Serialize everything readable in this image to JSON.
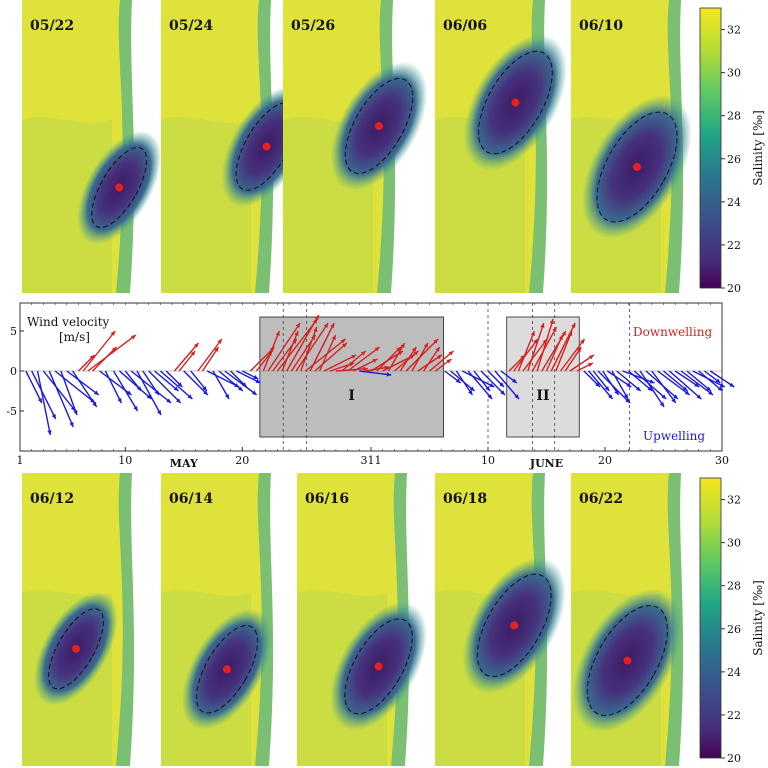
{
  "maps_top": [
    "05/22",
    "05/24",
    "05/26",
    "06/06",
    "06/10"
  ],
  "maps_bottom": [
    "06/12",
    "06/14",
    "06/16",
    "06/18",
    "06/22"
  ],
  "colorbar": {
    "label": "Salinity [‰]",
    "ticks": [
      "32",
      "30",
      "28",
      "26",
      "24",
      "22",
      "20"
    ],
    "range": [
      20,
      33
    ]
  },
  "colors": {
    "high": "#e8e43a",
    "mid": "#3aa692",
    "low": "#3d1a63",
    "downwelling": "#d62020",
    "upwelling": "#1a1adc",
    "event_I": "#bdbdbd",
    "event_II": "#dcdcdc"
  },
  "chart_data": {
    "type": "quiver",
    "title": "",
    "ylabel": "Wind velocity",
    "yunits": "[m/s]",
    "ylim": [
      -10,
      8.5
    ],
    "xlim": [
      1,
      61
    ],
    "yticks": [
      5,
      0,
      -5
    ],
    "xticks": [
      {
        "day": 1,
        "label": "1"
      },
      {
        "day": 10,
        "label": "10"
      },
      {
        "day": 20,
        "label": "20"
      },
      {
        "day": 31,
        "label": "311"
      },
      {
        "day": 41,
        "label": "10"
      },
      {
        "day": 51,
        "label": "20"
      },
      {
        "day": 61,
        "label": "30"
      }
    ],
    "month_labels": [
      {
        "day": 15,
        "label": "MAY"
      },
      {
        "day": 46,
        "label": "JUNE"
      }
    ],
    "legend": {
      "downwelling": "Downwelling",
      "upwelling": "Upwelling"
    },
    "events": [
      {
        "label": "I",
        "start": 21.5,
        "end": 37.2,
        "shade": "dark"
      },
      {
        "label": "II",
        "start": 42.6,
        "end": 48.8,
        "shade": "light"
      }
    ],
    "dashed_days": [
      23.5,
      25.5,
      41,
      44.8,
      46.7,
      53.1
    ],
    "vectors": [
      {
        "day": 1.5,
        "u": 1.0,
        "v": -4.0
      },
      {
        "day": 2.0,
        "u": 1.5,
        "v": -6.0
      },
      {
        "day": 2.5,
        "u": 0.8,
        "v": -8.0
      },
      {
        "day": 3.0,
        "u": 2.0,
        "v": -5.0
      },
      {
        "day": 3.5,
        "u": 1.5,
        "v": -7.0
      },
      {
        "day": 4.0,
        "u": 2.5,
        "v": -4.0
      },
      {
        "day": 4.5,
        "u": 1.0,
        "v": -5.5
      },
      {
        "day": 5.0,
        "u": 2.0,
        "v": -3.0
      },
      {
        "day": 5.5,
        "u": 1.5,
        "v": -4.5
      },
      {
        "day": 6.0,
        "u": 1.0,
        "v": 2.0
      },
      {
        "day": 6.4,
        "u": 2.0,
        "v": 5.0
      },
      {
        "day": 6.8,
        "u": 3.0,
        "v": 4.5
      },
      {
        "day": 7.2,
        "u": 1.5,
        "v": 3.0
      },
      {
        "day": 7.8,
        "u": 2.0,
        "v": -3.0
      },
      {
        "day": 8.3,
        "u": 1.0,
        "v": -4.0
      },
      {
        "day": 9.0,
        "u": 1.5,
        "v": -5.0
      },
      {
        "day": 9.5,
        "u": 2.0,
        "v": -3.5
      },
      {
        "day": 10.0,
        "u": 1.0,
        "v": -2.5
      },
      {
        "day": 10.5,
        "u": 2.5,
        "v": -4.0
      },
      {
        "day": 11.0,
        "u": 1.5,
        "v": -5.5
      },
      {
        "day": 11.5,
        "u": 1.0,
        "v": -3.0
      },
      {
        "day": 12.0,
        "u": 2.0,
        "v": -4.0
      },
      {
        "day": 12.5,
        "u": 1.5,
        "v": -2.5
      },
      {
        "day": 13.0,
        "u": 2.0,
        "v": -3.5
      },
      {
        "day": 13.5,
        "u": 1.0,
        "v": -2.0
      },
      {
        "day": 14.2,
        "u": 1.5,
        "v": 3.5
      },
      {
        "day": 14.6,
        "u": 1.0,
        "v": 2.5
      },
      {
        "day": 15.0,
        "u": 1.5,
        "v": -3.0
      },
      {
        "day": 15.6,
        "u": 1.0,
        "v": -2.5
      },
      {
        "day": 16.2,
        "u": 1.5,
        "v": 4.0
      },
      {
        "day": 16.6,
        "u": 1.0,
        "v": 3.0
      },
      {
        "day": 17.0,
        "u": 2.0,
        "v": -2.0
      },
      {
        "day": 17.5,
        "u": 1.0,
        "v": -3.5
      },
      {
        "day": 18.0,
        "u": 1.5,
        "v": -2.5
      },
      {
        "day": 18.5,
        "u": 2.0,
        "v": -3.0
      },
      {
        "day": 19.0,
        "u": 1.0,
        "v": -2.0
      },
      {
        "day": 19.5,
        "u": 1.5,
        "v": -1.5
      },
      {
        "day": 20.0,
        "u": 1.0,
        "v": -1.0
      },
      {
        "day": 20.7,
        "u": 1.5,
        "v": 3.0
      },
      {
        "day": 21.2,
        "u": 1.0,
        "v": 2.5
      },
      {
        "day": 21.8,
        "u": 1.0,
        "v": 5.0
      },
      {
        "day": 22.2,
        "u": 2.0,
        "v": 6.0
      },
      {
        "day": 22.6,
        "u": 1.5,
        "v": 4.0
      },
      {
        "day": 23.0,
        "u": 2.5,
        "v": 6.5
      },
      {
        "day": 23.4,
        "u": 1.0,
        "v": 5.0
      },
      {
        "day": 23.8,
        "u": 2.0,
        "v": 7.0
      },
      {
        "day": 24.2,
        "u": 1.5,
        "v": 4.5
      },
      {
        "day": 24.6,
        "u": 2.0,
        "v": 6.0
      },
      {
        "day": 25.0,
        "u": 1.0,
        "v": 5.5
      },
      {
        "day": 25.4,
        "u": 2.5,
        "v": 4.0
      },
      {
        "day": 25.8,
        "u": 1.5,
        "v": 6.0
      },
      {
        "day": 26.2,
        "u": 2.0,
        "v": 3.5
      },
      {
        "day": 26.6,
        "u": 1.0,
        "v": 4.5
      },
      {
        "day": 27.0,
        "u": 2.0,
        "v": 2.0
      },
      {
        "day": 27.5,
        "u": 1.5,
        "v": 1.0
      },
      {
        "day": 28.0,
        "u": 2.0,
        "v": 0.3
      },
      {
        "day": 28.5,
        "u": 1.5,
        "v": 2.5
      },
      {
        "day": 29.0,
        "u": 2.0,
        "v": 3.0
      },
      {
        "day": 29.5,
        "u": 1.5,
        "v": 1.5
      },
      {
        "day": 30.0,
        "u": 2.0,
        "v": -0.5
      },
      {
        "day": 30.5,
        "u": 1.5,
        "v": 0.5
      },
      {
        "day": 31.0,
        "u": 2.0,
        "v": 2.5
      },
      {
        "day": 31.5,
        "u": 1.5,
        "v": 3.0
      },
      {
        "day": 32.0,
        "u": 2.0,
        "v": 2.0
      },
      {
        "day": 32.5,
        "u": 1.0,
        "v": 3.5
      },
      {
        "day": 33.0,
        "u": 1.5,
        "v": 2.5
      },
      {
        "day": 33.5,
        "u": 1.0,
        "v": 3.0
      },
      {
        "day": 34.0,
        "u": 2.0,
        "v": 4.0
      },
      {
        "day": 34.5,
        "u": 1.0,
        "v": 3.5
      },
      {
        "day": 35.0,
        "u": 1.5,
        "v": 2.0
      },
      {
        "day": 35.5,
        "u": 1.0,
        "v": 3.0
      },
      {
        "day": 36.0,
        "u": 1.5,
        "v": 2.5
      },
      {
        "day": 36.5,
        "u": 1.0,
        "v": 1.5
      },
      {
        "day": 37.3,
        "u": 1.0,
        "v": -1.5
      },
      {
        "day": 37.8,
        "u": 1.5,
        "v": -2.5
      },
      {
        "day": 38.3,
        "u": 1.0,
        "v": -3.0
      },
      {
        "day": 38.8,
        "u": 2.0,
        "v": -2.0
      },
      {
        "day": 39.3,
        "u": 1.5,
        "v": -3.5
      },
      {
        "day": 39.8,
        "u": 1.0,
        "v": -2.5
      },
      {
        "day": 40.4,
        "u": 1.5,
        "v": -3.0
      },
      {
        "day": 41.0,
        "u": 1.0,
        "v": -2.0
      },
      {
        "day": 41.6,
        "u": 1.5,
        "v": -3.5
      },
      {
        "day": 42.1,
        "u": 1.0,
        "v": -1.5
      },
      {
        "day": 42.8,
        "u": 1.0,
        "v": 2.0
      },
      {
        "day": 43.2,
        "u": 1.5,
        "v": 4.0
      },
      {
        "day": 43.6,
        "u": 1.0,
        "v": 5.0
      },
      {
        "day": 44.0,
        "u": 1.5,
        "v": 4.0
      },
      {
        "day": 44.4,
        "u": 1.0,
        "v": 6.0
      },
      {
        "day": 44.8,
        "u": 1.5,
        "v": 5.5
      },
      {
        "day": 45.2,
        "u": 1.0,
        "v": 6.5
      },
      {
        "day": 45.6,
        "u": 1.5,
        "v": 5.0
      },
      {
        "day": 46.0,
        "u": 1.0,
        "v": 4.5
      },
      {
        "day": 46.4,
        "u": 1.5,
        "v": 6.0
      },
      {
        "day": 46.8,
        "u": 1.0,
        "v": 5.0
      },
      {
        "day": 47.2,
        "u": 1.5,
        "v": 4.0
      },
      {
        "day": 47.6,
        "u": 1.0,
        "v": 3.0
      },
      {
        "day": 48.0,
        "u": 1.5,
        "v": 2.0
      },
      {
        "day": 48.6,
        "u": 1.0,
        "v": 1.0
      },
      {
        "day": 49.2,
        "u": 1.0,
        "v": -2.0
      },
      {
        "day": 49.6,
        "u": 1.5,
        "v": -3.5
      },
      {
        "day": 50.0,
        "u": 1.0,
        "v": -2.5
      },
      {
        "day": 50.4,
        "u": 2.0,
        "v": -4.0
      },
      {
        "day": 50.8,
        "u": 1.0,
        "v": -3.0
      },
      {
        "day": 51.2,
        "u": 1.5,
        "v": -2.0
      },
      {
        "day": 51.6,
        "u": 1.0,
        "v": -3.5
      },
      {
        "day": 52.0,
        "u": 1.5,
        "v": -2.5
      },
      {
        "day": 52.5,
        "u": 2.0,
        "v": -1.5
      },
      {
        "day": 53.0,
        "u": 1.5,
        "v": -2.5
      },
      {
        "day": 53.5,
        "u": 2.0,
        "v": -3.5
      },
      {
        "day": 54.0,
        "u": 1.5,
        "v": -4.5
      },
      {
        "day": 54.5,
        "u": 2.0,
        "v": -3.5
      },
      {
        "day": 55.0,
        "u": 1.5,
        "v": -4.0
      },
      {
        "day": 55.5,
        "u": 2.0,
        "v": -3.0
      },
      {
        "day": 56.0,
        "u": 1.5,
        "v": -2.5
      },
      {
        "day": 56.5,
        "u": 2.0,
        "v": -3.5
      },
      {
        "day": 57.0,
        "u": 1.5,
        "v": -2.0
      },
      {
        "day": 57.5,
        "u": 2.0,
        "v": -3.0
      },
      {
        "day": 58.0,
        "u": 1.5,
        "v": -2.5
      },
      {
        "day": 58.5,
        "u": 2.0,
        "v": -2.0
      },
      {
        "day": 59.0,
        "u": 1.5,
        "v": -2.5
      },
      {
        "day": 59.5,
        "u": 1.0,
        "v": -1.5
      },
      {
        "day": 60.0,
        "u": 1.5,
        "v": -2.0
      }
    ],
    "markers": [
      {
        "map": "05/22",
        "x": 0.81,
        "y": 0.64
      },
      {
        "map": "05/24",
        "x": 0.88,
        "y": 0.5
      },
      {
        "map": "05/26",
        "x": 0.8,
        "y": 0.43
      },
      {
        "map": "06/06",
        "x": 0.67,
        "y": 0.35
      },
      {
        "map": "06/10",
        "x": 0.55,
        "y": 0.57
      },
      {
        "map": "06/12",
        "x": 0.45,
        "y": 0.6
      },
      {
        "map": "06/14",
        "x": 0.55,
        "y": 0.67
      },
      {
        "map": "06/16",
        "x": 0.68,
        "y": 0.66
      },
      {
        "map": "06/18",
        "x": 0.66,
        "y": 0.52
      },
      {
        "map": "06/22",
        "x": 0.47,
        "y": 0.64
      }
    ]
  }
}
